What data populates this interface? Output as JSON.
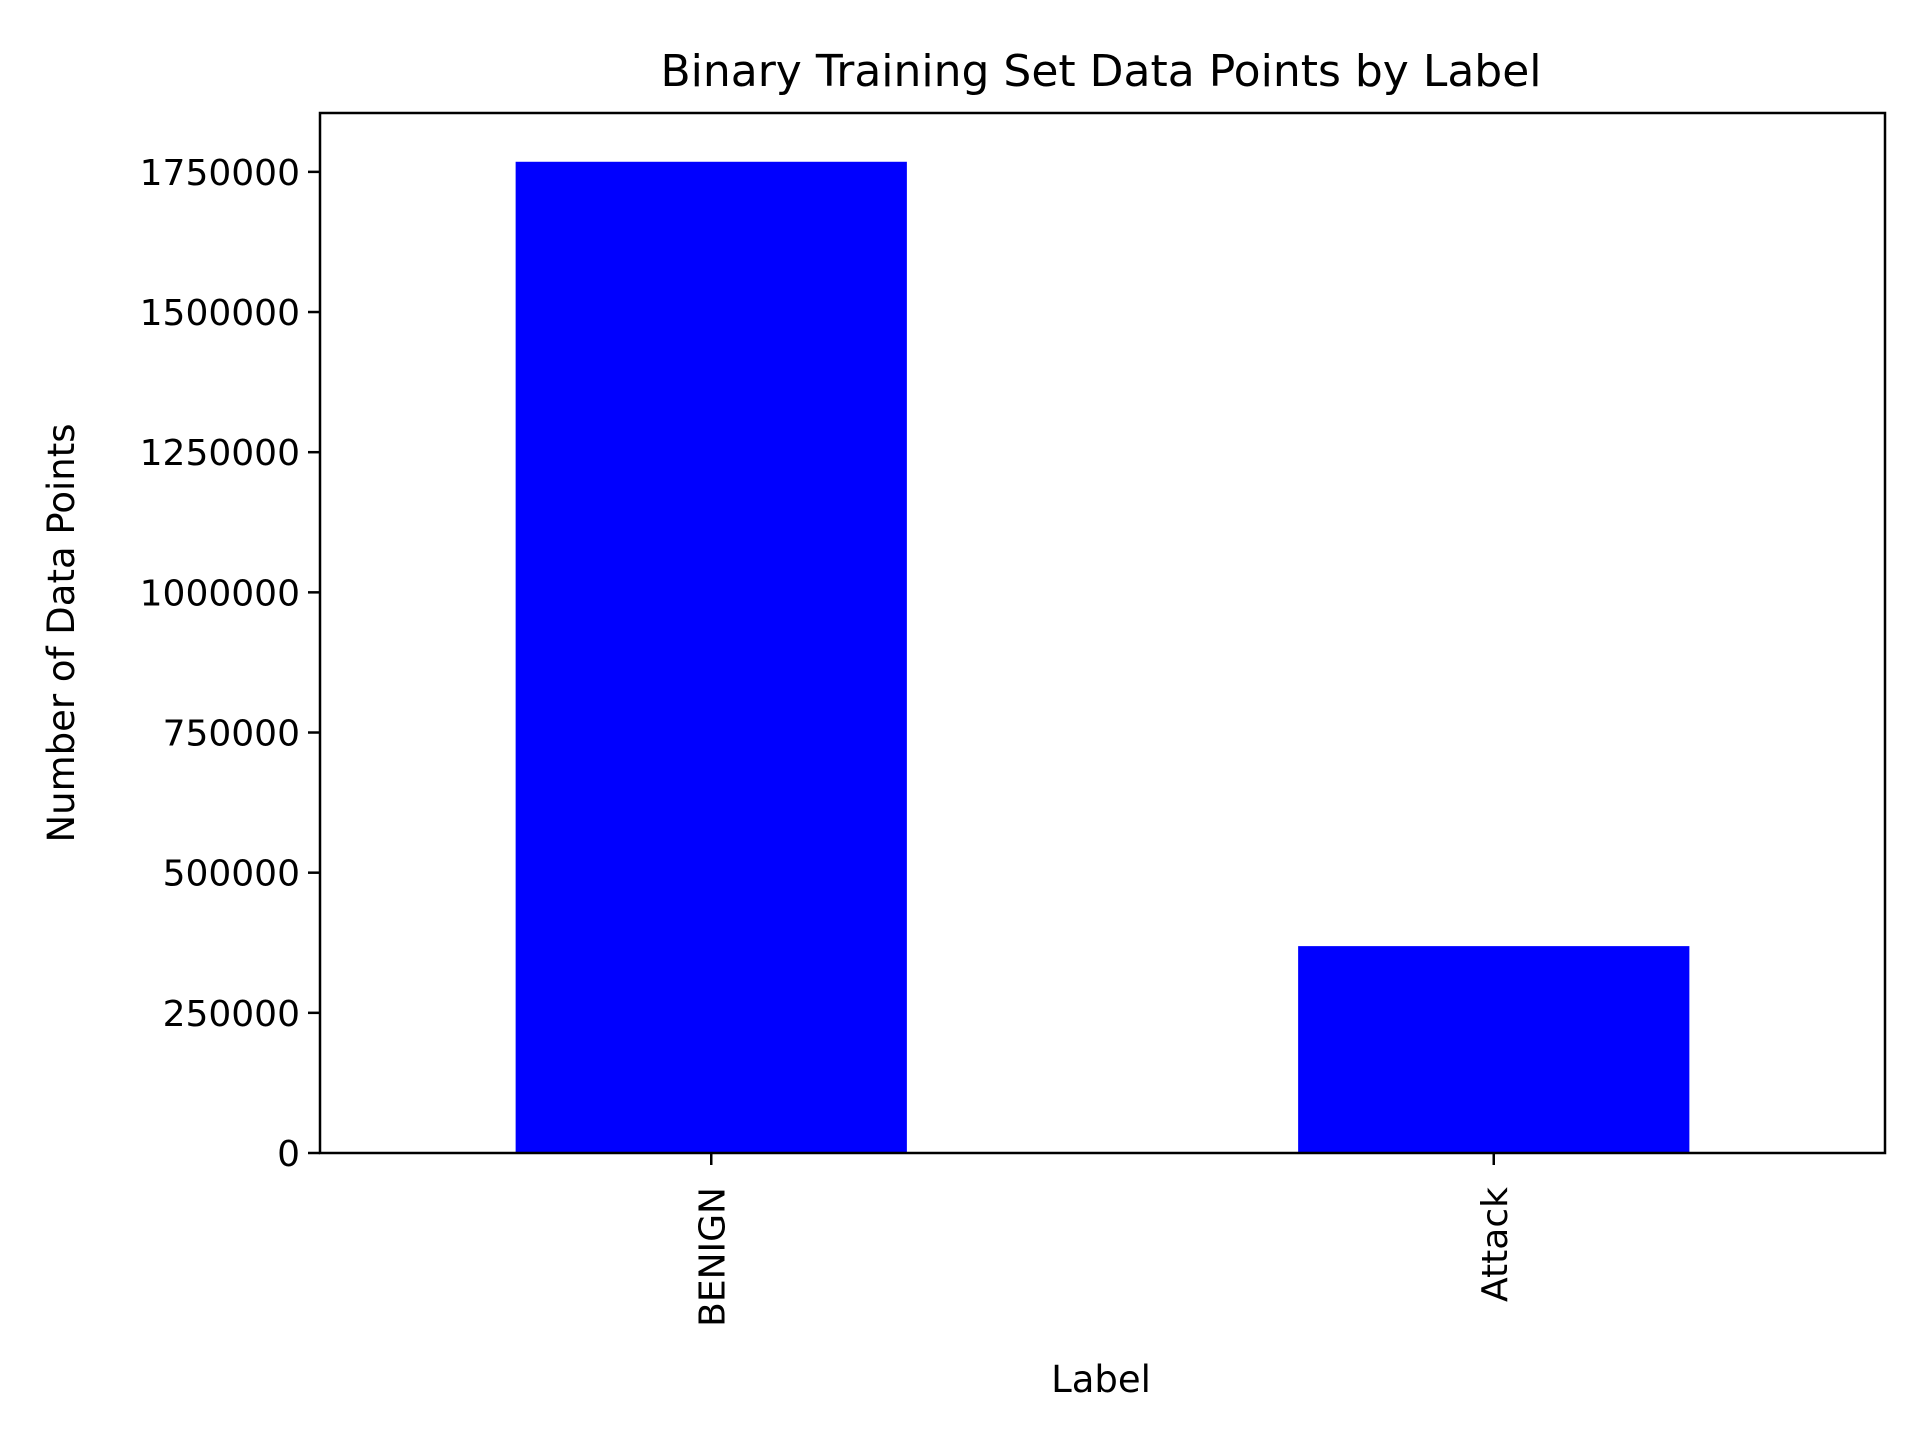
{
  "chart_data": {
    "type": "bar",
    "title": "Binary Training Set Data Points by Label",
    "xlabel": "Label",
    "ylabel": "Number of Data Points",
    "categories": [
      "BENIGN",
      "Attack"
    ],
    "values": [
      1768000,
      369000
    ],
    "ylim": [
      0,
      1855000
    ],
    "yticks": [
      0,
      250000,
      500000,
      750000,
      1000000,
      1250000,
      1500000,
      1750000
    ],
    "ytick_labels": [
      "0",
      "250000",
      "500000",
      "750000",
      "1000000",
      "1250000",
      "1500000",
      "1750000"
    ],
    "bar_color": "#0000ff",
    "grid": false,
    "legend": "none"
  }
}
